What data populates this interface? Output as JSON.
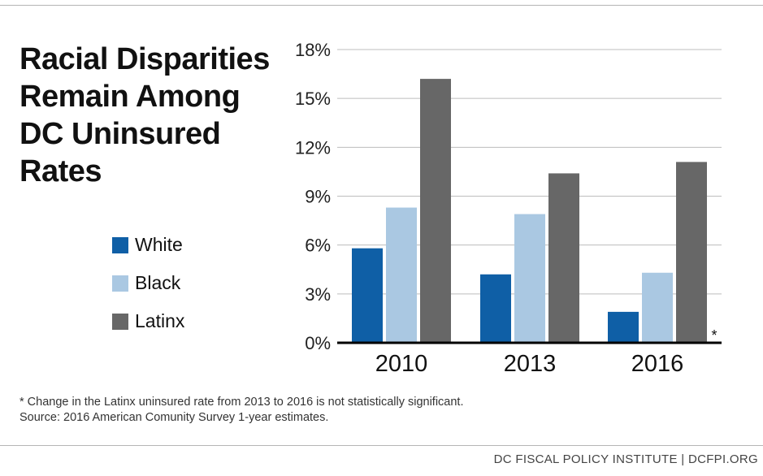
{
  "title": "Racial Disparities Remain Among DC Uninsured Rates",
  "footnote": "* Change in the Latinx uninsured rate from 2013 to 2016 is not statistically significant.",
  "source": "Source: 2016 American Comunity Survey 1-year estimates.",
  "credit": "DC FISCAL POLICY INSTITUTE | DCFPI.ORG",
  "asterisk": "*",
  "colors": {
    "White": "#0f5fa6",
    "Black": "#aac8e2",
    "Latinx": "#676767"
  },
  "chart_data": {
    "type": "bar",
    "title": "Racial Disparities Remain Among DC Uninsured Rates",
    "categories": [
      "2010",
      "2013",
      "2016"
    ],
    "series": [
      {
        "name": "White",
        "values": [
          5.8,
          4.2,
          1.9
        ]
      },
      {
        "name": "Black",
        "values": [
          8.3,
          7.9,
          4.3
        ]
      },
      {
        "name": "Latinx",
        "values": [
          16.2,
          10.4,
          11.1
        ]
      }
    ],
    "y_ticks": [
      "0%",
      "3%",
      "6%",
      "9%",
      "12%",
      "15%",
      "18%"
    ],
    "ylim": [
      0,
      18
    ],
    "unit": "%",
    "grid": true,
    "legend": "left"
  }
}
